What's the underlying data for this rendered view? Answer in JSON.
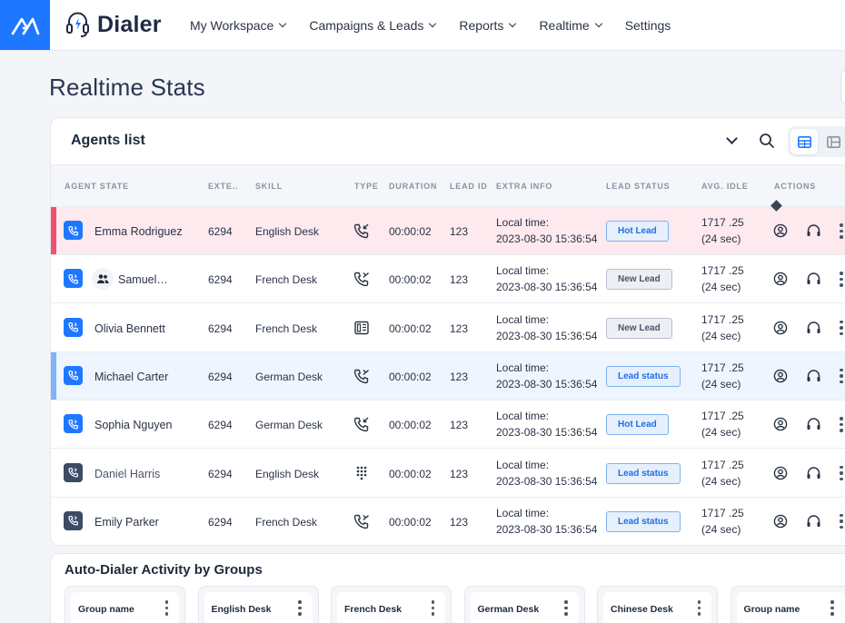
{
  "app": {
    "brand": "Dialer"
  },
  "nav": [
    {
      "label": "My Workspace",
      "has_menu": true
    },
    {
      "label": "Campaigns & Leads",
      "has_menu": true
    },
    {
      "label": "Reports",
      "has_menu": true
    },
    {
      "label": "Realtime",
      "has_menu": true
    },
    {
      "label": "Settings",
      "has_menu": false
    }
  ],
  "page": {
    "title": "Realtime Stats"
  },
  "agents": {
    "title": "Agents list",
    "columns": [
      "AGENT STATE",
      "EXTE..",
      "SKILL",
      "TYPE",
      "DURATION",
      "LEAD ID",
      "EXTRA INFO",
      "LEAD STATUS",
      "AVG. IDLE",
      "ACTIONS"
    ],
    "rows": [
      {
        "name": "Emma Rodriguez",
        "ext": "6294",
        "skill": "English Desk",
        "type_icon": "phone-incoming-icon",
        "duration": "00:00:02",
        "lead_id": "123",
        "extra_label": "Local time:",
        "extra_value": "2023-08-30 15:36:54",
        "lead_status": "Hot Lead",
        "status_kind": "hot",
        "idle": "1717 .25",
        "idle_sec": "(24 sec)",
        "state": "blue",
        "row_style": "hot"
      },
      {
        "name": "Samuel…",
        "ext": "6294",
        "skill": "French Desk",
        "type_icon": "phone-outgoing-icon",
        "duration": "00:00:02",
        "lead_id": "123",
        "extra_label": "Local time:",
        "extra_value": "2023-08-30 15:36:54",
        "lead_status": "New Lead",
        "status_kind": "new",
        "idle": "1717 .25",
        "idle_sec": "(24 sec)",
        "state": "blue",
        "row_style": "normal",
        "group": true
      },
      {
        "name": "Olivia Bennett",
        "ext": "6294",
        "skill": "French Desk",
        "type_icon": "fax-icon",
        "duration": "00:00:02",
        "lead_id": "123",
        "extra_label": "Local time:",
        "extra_value": "2023-08-30 15:36:54",
        "lead_status": "New Lead",
        "status_kind": "new",
        "idle": "1717 .25",
        "idle_sec": "(24 sec)",
        "state": "blue",
        "row_style": "normal"
      },
      {
        "name": "Michael Carter",
        "ext": "6294",
        "skill": "German Desk",
        "type_icon": "phone-outgoing-icon",
        "duration": "00:00:02",
        "lead_id": "123",
        "extra_label": "Local time:",
        "extra_value": "2023-08-30 15:36:54",
        "lead_status": "Lead status",
        "status_kind": "status",
        "idle": "1717 .25",
        "idle_sec": "(24 sec)",
        "state": "blue",
        "row_style": "selected"
      },
      {
        "name": "Sophia Nguyen",
        "ext": "6294",
        "skill": "German Desk",
        "type_icon": "phone-incoming-icon",
        "duration": "00:00:02",
        "lead_id": "123",
        "extra_label": "Local time:",
        "extra_value": "2023-08-30 15:36:54",
        "lead_status": "Hot Lead",
        "status_kind": "hot",
        "idle": "1717 .25",
        "idle_sec": "(24 sec)",
        "state": "blue",
        "row_style": "normal"
      },
      {
        "name": "Daniel Harris",
        "ext": "6294",
        "skill": "English Desk",
        "type_icon": "dialpad-icon",
        "duration": "00:00:02",
        "lead_id": "123",
        "extra_label": "Local time:",
        "extra_value": "2023-08-30 15:36:54",
        "lead_status": "Lead status",
        "status_kind": "status",
        "idle": "1717 .25",
        "idle_sec": "(24 sec)",
        "state": "dark",
        "row_style": "normal"
      },
      {
        "name": "Emily Parker",
        "ext": "6294",
        "skill": "French Desk",
        "type_icon": "phone-outgoing-icon",
        "duration": "00:00:02",
        "lead_id": "123",
        "extra_label": "Local time:",
        "extra_value": "2023-08-30 15:36:54",
        "lead_status": "Lead status",
        "status_kind": "status",
        "idle": "1717 .25",
        "idle_sec": "(24 sec)",
        "state": "dark",
        "row_style": "normal"
      }
    ]
  },
  "auto_dialer": {
    "title": "Auto-Dialer Activity by Groups",
    "groups": [
      "Group name",
      "English Desk",
      "French Desk",
      "German Desk",
      "Chinese Desk",
      "Group name"
    ]
  },
  "colors": {
    "accent": "#1e78ff",
    "hot_row": "#fde9ee",
    "hot_bar": "#f0506e",
    "selected_row": "#eef5fe",
    "selected_bar": "#7fb5f5"
  }
}
